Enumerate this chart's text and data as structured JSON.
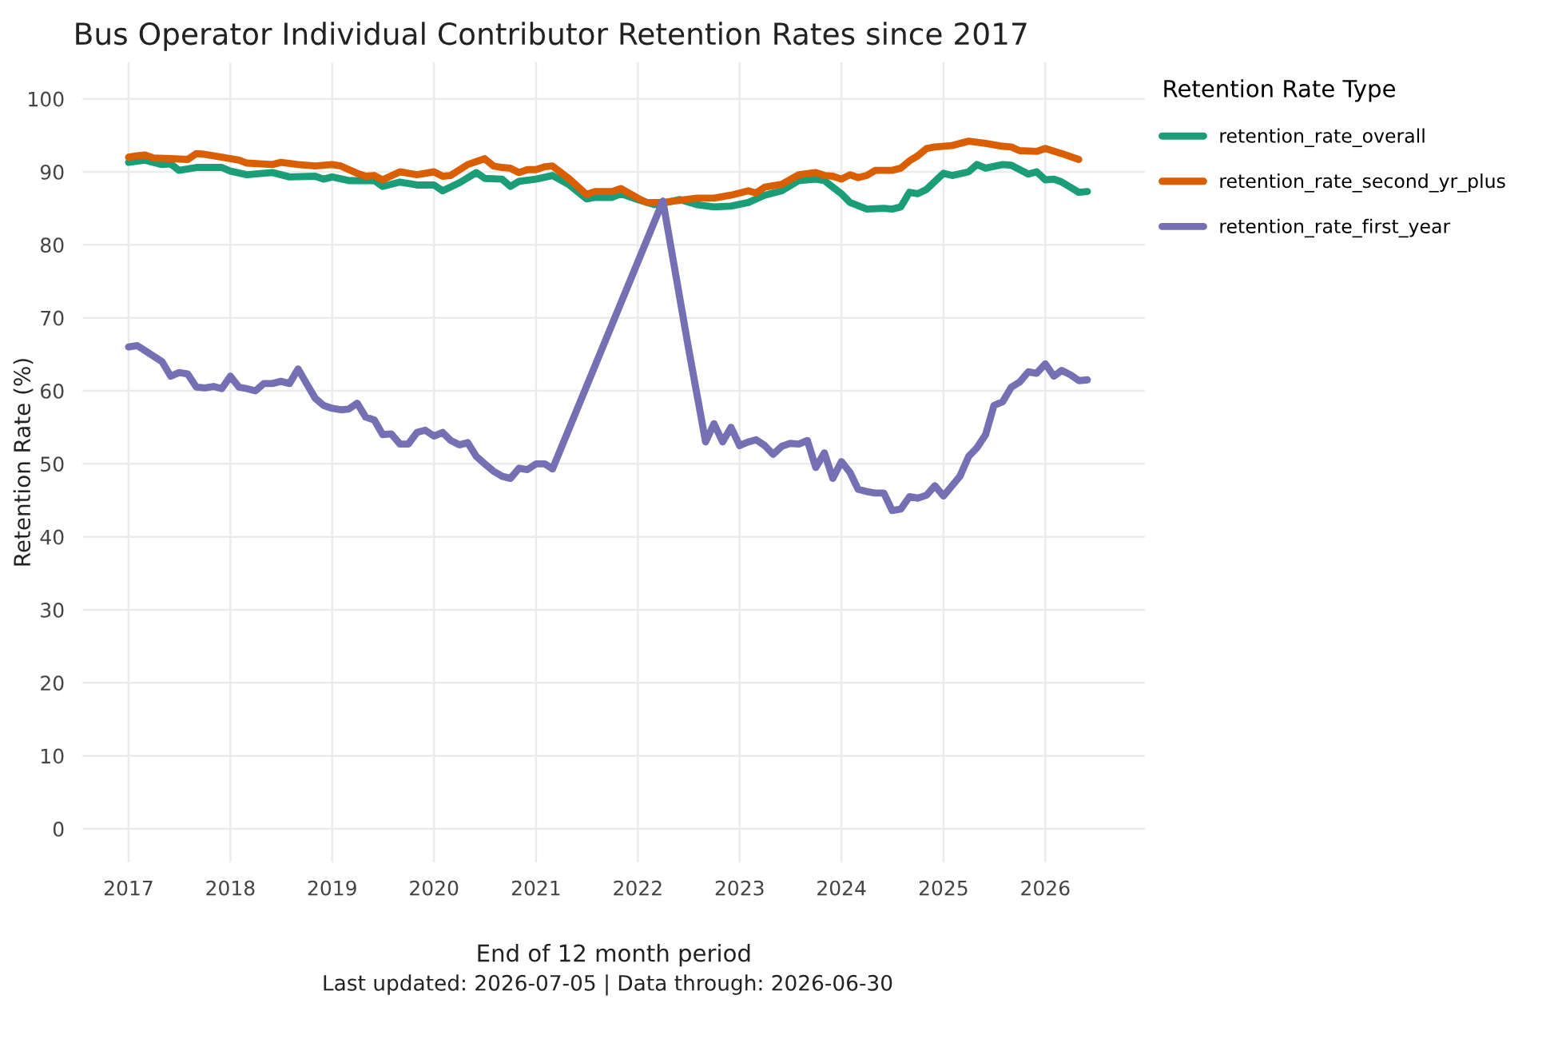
{
  "chart_data": {
    "type": "line",
    "title": "Bus Operator Individual Contributor Retention Rates since 2017",
    "xlabel": "End of 12 month period",
    "ylabel": "Retention Rate (%)",
    "legend_title": "Retention Rate Type",
    "annotations": [
      "Last updated: 2026-07-05 | Data through: 2026-06-30"
    ],
    "xlim": [
      "2016-07-20",
      "2026-12-25"
    ],
    "xticks": [
      "2017",
      "2018",
      "2019",
      "2020",
      "2021",
      "2022",
      "2023",
      "2024",
      "2025",
      "2026"
    ],
    "ylim": [
      -4.6,
      105
    ],
    "yticks": [
      0,
      10,
      20,
      30,
      40,
      50,
      60,
      70,
      80,
      90,
      100
    ],
    "grid": true,
    "legend": "top right",
    "line_style": "solid",
    "marker": "none",
    "series": [
      {
        "name": "retention_rate_overall",
        "color": "#1b9e77",
        "x": [
          "2017-01",
          "2017-03",
          "2017-05",
          "2017-06",
          "2017-07",
          "2017-09",
          "2017-12",
          "2018-01",
          "2018-03",
          "2018-06",
          "2018-08",
          "2018-11",
          "2018-12",
          "2019-01",
          "2019-03",
          "2019-06",
          "2019-07",
          "2019-09",
          "2019-11",
          "2020-01",
          "2020-02",
          "2020-04",
          "2020-06",
          "2020-07",
          "2020-09",
          "2020-10",
          "2020-11",
          "2021-01",
          "2021-03",
          "2021-05",
          "2021-07",
          "2021-08",
          "2021-10",
          "2021-11",
          "2022-01",
          "2022-03",
          "2022-04",
          "2022-06",
          "2022-08",
          "2022-10",
          "2022-12",
          "2023-02",
          "2023-04",
          "2023-06",
          "2023-08",
          "2023-10",
          "2023-11",
          "2024-01",
          "2024-02",
          "2024-04",
          "2024-06",
          "2024-07",
          "2024-08",
          "2024-09",
          "2024-10",
          "2024-11",
          "2025-01",
          "2025-02",
          "2025-04",
          "2025-05",
          "2025-06",
          "2025-08",
          "2025-09",
          "2025-11",
          "2025-12",
          "2026-01",
          "2026-02",
          "2026-03",
          "2026-05",
          "2026-06"
        ],
        "values": [
          91.3,
          91.6,
          91,
          91.1,
          90.2,
          90.6,
          90.6,
          90.1,
          89.6,
          89.9,
          89.3,
          89.4,
          89.0,
          89.3,
          88.8,
          88.8,
          88.0,
          88.6,
          88.2,
          88.2,
          87.4,
          88.5,
          89.9,
          89.1,
          89.0,
          88.0,
          88.7,
          89.0,
          89.5,
          88.2,
          86.3,
          86.5,
          86.5,
          87,
          86.2,
          85.5,
          85.7,
          86.2,
          85.5,
          85.2,
          85.3,
          85.8,
          86.8,
          87.4,
          88.8,
          89,
          88.8,
          87,
          85.8,
          84.9,
          85,
          84.9,
          85.2,
          87.2,
          87,
          87.6,
          89.8,
          89.5,
          90.0,
          91.0,
          90.5,
          91.0,
          90.9,
          89.7,
          90,
          88.9,
          89,
          88.6,
          87.2,
          87.3
        ]
      },
      {
        "name": "retention_rate_second_yr_plus",
        "color": "#d95f02",
        "x": [
          "2017-01",
          "2017-02",
          "2017-03",
          "2017-04",
          "2017-06",
          "2017-08",
          "2017-09",
          "2017-10",
          "2017-12",
          "2018-02",
          "2018-03",
          "2018-06",
          "2018-07",
          "2018-09",
          "2018-11",
          "2019-01",
          "2019-02",
          "2019-04",
          "2019-05",
          "2019-06",
          "2019-07",
          "2019-09",
          "2019-11",
          "2020-01",
          "2020-02",
          "2020-03",
          "2020-05",
          "2020-07",
          "2020-08",
          "2020-09",
          "2020-10",
          "2020-11",
          "2020-12",
          "2021-01",
          "2021-02",
          "2021-03",
          "2021-05",
          "2021-07",
          "2021-08",
          "2021-10",
          "2021-11",
          "2022-01",
          "2022-02",
          "2022-04",
          "2022-06",
          "2022-08",
          "2022-10",
          "2022-12",
          "2023-02",
          "2023-03",
          "2023-04",
          "2023-06",
          "2023-08",
          "2023-10",
          "2023-11",
          "2023-12",
          "2024-01",
          "2024-02",
          "2024-03",
          "2024-04",
          "2024-05",
          "2024-07",
          "2024-08",
          "2024-09",
          "2024-10",
          "2024-11",
          "2024-12",
          "2025-02",
          "2025-04",
          "2025-06",
          "2025-08",
          "2025-09",
          "2025-10",
          "2025-12",
          "2026-01",
          "2026-03",
          "2026-05"
        ],
        "values": [
          92,
          92.2,
          92.3,
          91.9,
          91.8,
          91.7,
          92.5,
          92.4,
          92,
          91.6,
          91.2,
          91,
          91.3,
          91,
          90.8,
          91,
          90.8,
          89.8,
          89.4,
          89.5,
          88.9,
          90,
          89.6,
          90,
          89.4,
          89.5,
          91,
          91.8,
          90.8,
          90.6,
          90.5,
          89.9,
          90.3,
          90.3,
          90.7,
          90.8,
          89,
          86.9,
          87.3,
          87.3,
          87.7,
          86.4,
          85.8,
          85.8,
          86.1,
          86.4,
          86.4,
          86.8,
          87.4,
          87.1,
          87.9,
          88.3,
          89.6,
          89.9,
          89.5,
          89.4,
          89.0,
          89.6,
          89.2,
          89.5,
          90.2,
          90.2,
          90.5,
          91.5,
          92.2,
          93.2,
          93.4,
          93.6,
          94.2,
          93.9,
          93.5,
          93.4,
          92.9,
          92.8,
          93.2,
          92.5,
          91.7
        ]
      },
      {
        "name": "retention_rate_first_year",
        "color": "#7570b3",
        "x": [
          "2017-01",
          "2017-02",
          "2017-03",
          "2017-05",
          "2017-06",
          "2017-07",
          "2017-08",
          "2017-09",
          "2017-10",
          "2017-11",
          "2017-12",
          "2018-01",
          "2018-02",
          "2018-03",
          "2018-04",
          "2018-05",
          "2018-06",
          "2018-07",
          "2018-08",
          "2018-09",
          "2018-10",
          "2018-11",
          "2018-12",
          "2019-01",
          "2019-02",
          "2019-03",
          "2019-04",
          "2019-05",
          "2019-06",
          "2019-07",
          "2019-08",
          "2019-09",
          "2019-10",
          "2019-11",
          "2019-12",
          "2020-01",
          "2020-02",
          "2020-03",
          "2020-04",
          "2020-05",
          "2020-06",
          "2020-07",
          "2020-08",
          "2020-09",
          "2020-10",
          "2020-11",
          "2020-12",
          "2021-01",
          "2021-02",
          "2021-03",
          "2022-04",
          "2022-07",
          "2022-09",
          "2022-10",
          "2022-11",
          "2022-12",
          "2023-01",
          "2023-02",
          "2023-03",
          "2023-04",
          "2023-05",
          "2023-06",
          "2023-07",
          "2023-08",
          "2023-09",
          "2023-10",
          "2023-11",
          "2023-12",
          "2024-01",
          "2024-02",
          "2024-03",
          "2024-04",
          "2024-05",
          "2024-06",
          "2024-07",
          "2024-08",
          "2024-09",
          "2024-10",
          "2024-11",
          "2024-12",
          "2025-01",
          "2025-02",
          "2025-03",
          "2025-04",
          "2025-05",
          "2025-06",
          "2025-07",
          "2025-08",
          "2025-09",
          "2025-10",
          "2025-11",
          "2025-12",
          "2026-01",
          "2026-02",
          "2026-03",
          "2026-04",
          "2026-05",
          "2026-06"
        ],
        "values": [
          66,
          66.2,
          65.5,
          64,
          62,
          62.5,
          62.3,
          60.5,
          60.4,
          60.6,
          60.3,
          62,
          60.5,
          60.3,
          60,
          61,
          61,
          61.3,
          61,
          63,
          61,
          59,
          58,
          57.6,
          57.4,
          57.5,
          58.3,
          56.4,
          56,
          54,
          54.1,
          52.7,
          52.7,
          54.3,
          54.6,
          53.8,
          54.3,
          53.2,
          52.6,
          52.9,
          51,
          50,
          49,
          48.3,
          48,
          49.4,
          49.2,
          50,
          50,
          49.3,
          86,
          66,
          53,
          55.5,
          53,
          55,
          52.5,
          53,
          53.3,
          52.5,
          51.3,
          52.4,
          52.8,
          52.7,
          53.2,
          49.5,
          51.5,
          48,
          50.3,
          48.8,
          46.5,
          46.2,
          46,
          46,
          43.6,
          43.8,
          45.5,
          45.3,
          45.7,
          47,
          45.6,
          47,
          48.3,
          51,
          52.2,
          54,
          58,
          58.5,
          60.5,
          61.2,
          62.6,
          62.4,
          63.7,
          62,
          62.8,
          62.2,
          61.4,
          61.5
        ]
      }
    ]
  }
}
